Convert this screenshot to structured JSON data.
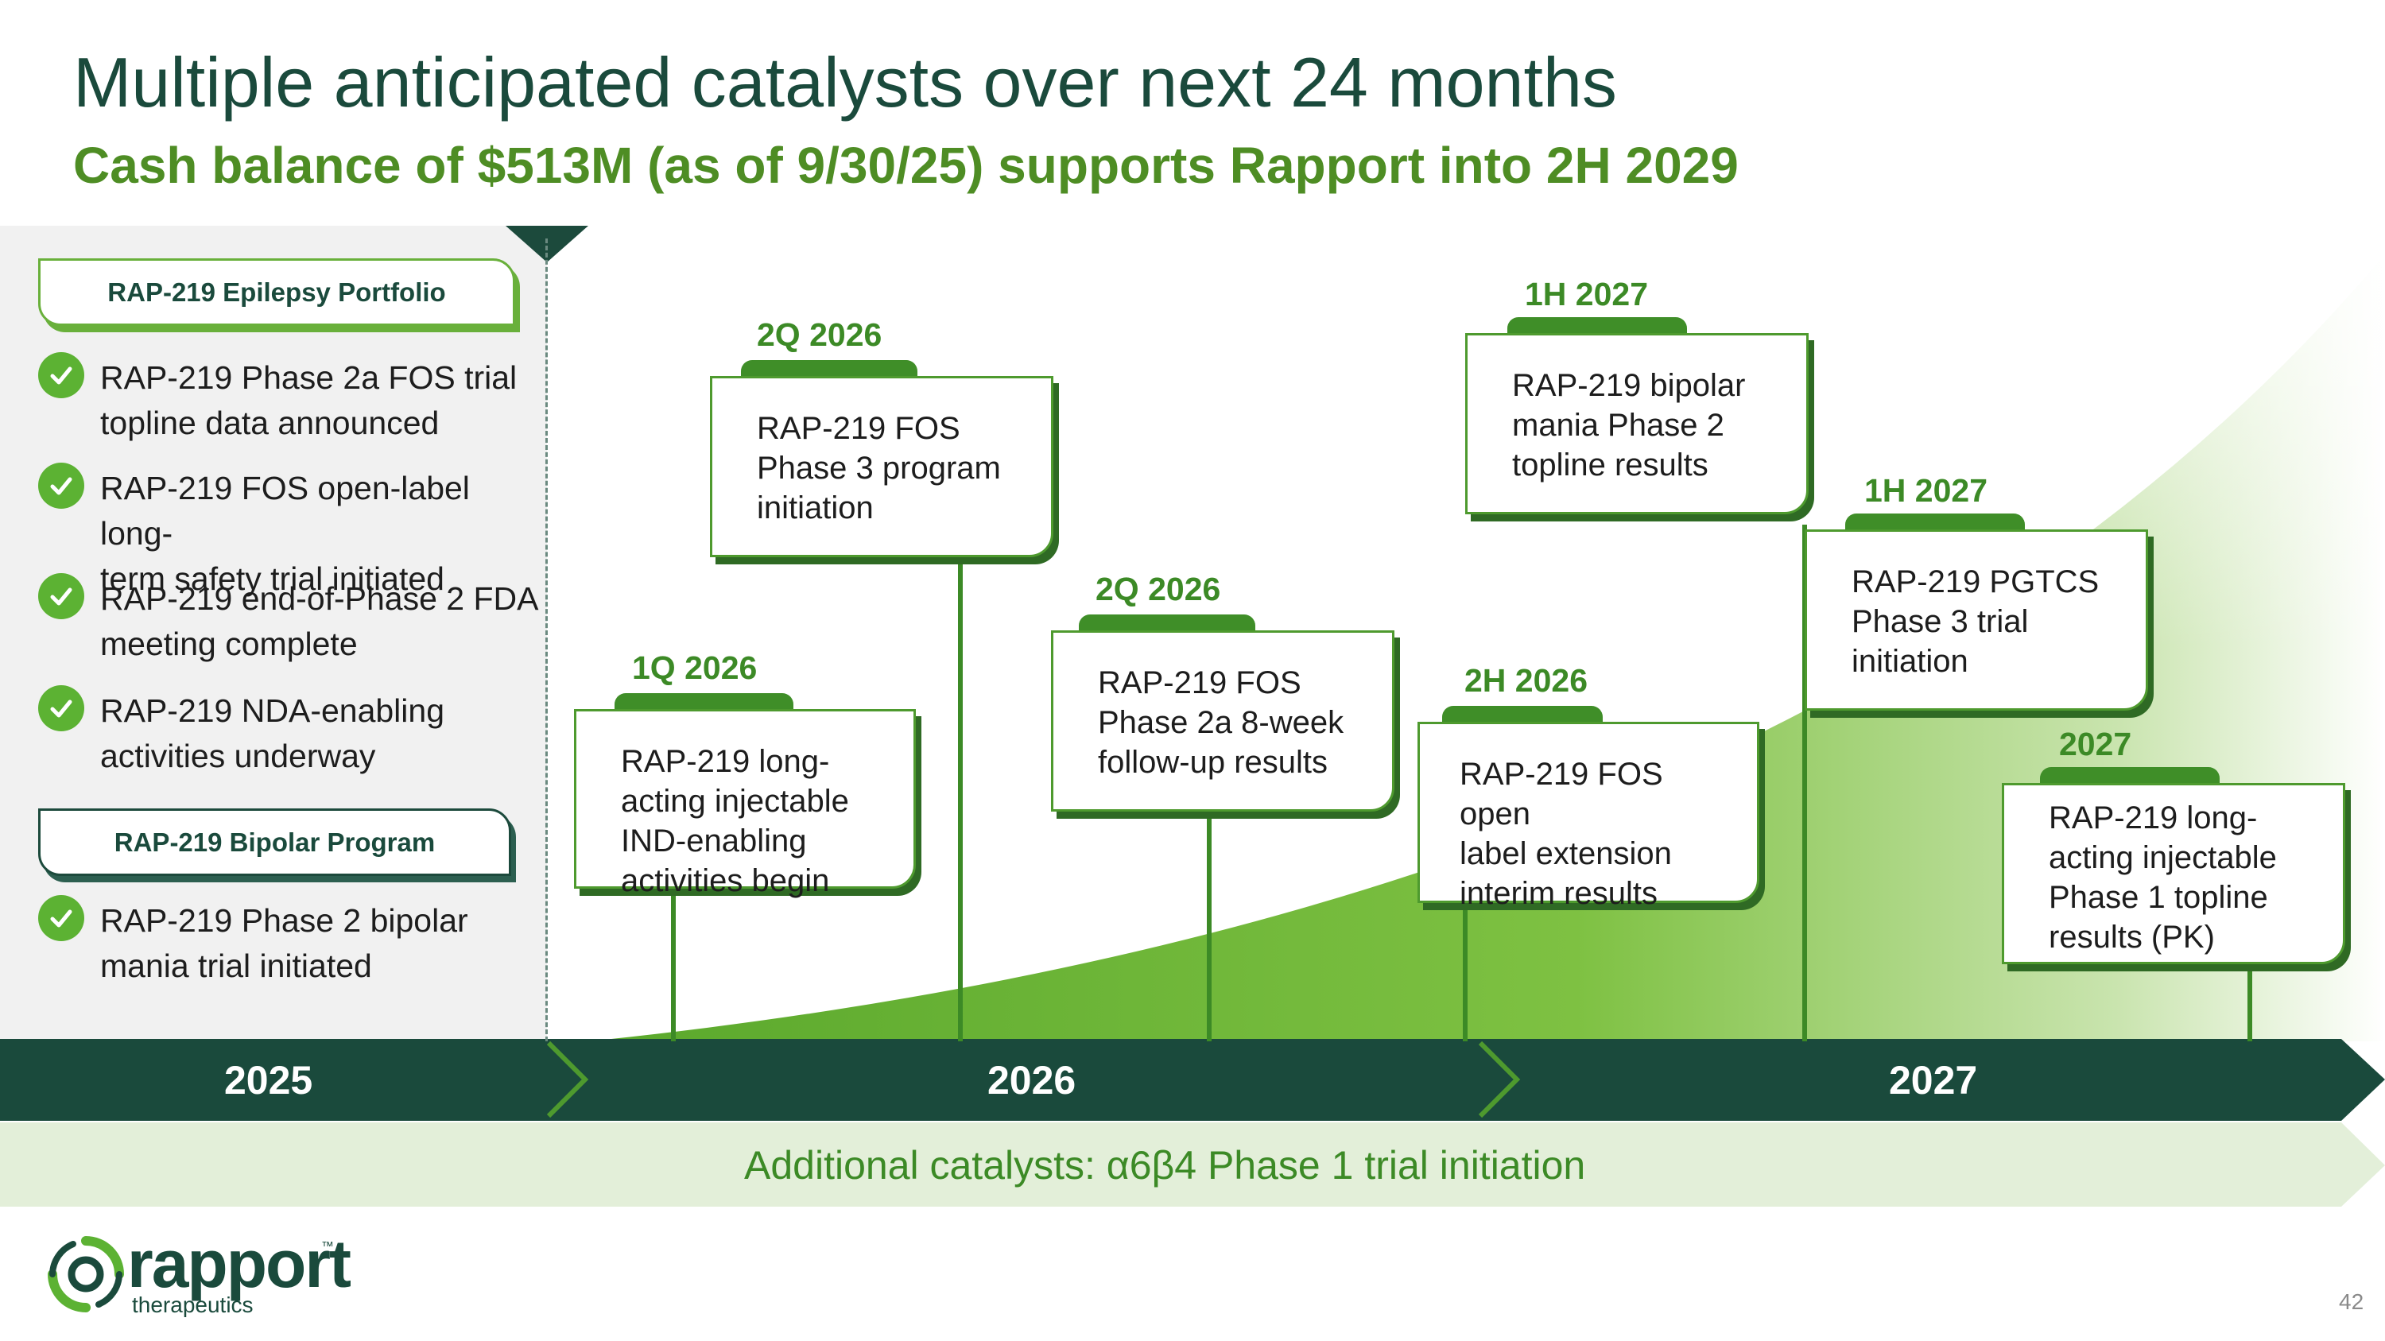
{
  "header": {
    "title": "Multiple anticipated catalysts over next 24 months",
    "subtitle": "Cash balance of $513M (as of 9/30/25) supports Rapport into 2H 2029"
  },
  "left_panel": {
    "epilepsy_tab": "RAP-219 Epilepsy Portfolio",
    "epilepsy_items": [
      [
        "RAP-219 Phase 2a FOS trial",
        "topline data announced"
      ],
      [
        "RAP-219 FOS open-label long-",
        "term safety trial initiated"
      ],
      [
        "RAP-219 end-of-Phase 2 FDA",
        "meeting complete"
      ],
      [
        "RAP-219 NDA-enabling",
        "activities underway"
      ]
    ],
    "bipolar_tab": "RAP-219 Bipolar Program",
    "bipolar_items": [
      [
        "RAP-219 Phase 2 bipolar",
        "mania trial initiated"
      ]
    ]
  },
  "milestones": [
    {
      "date": "1Q 2026",
      "lines": [
        "RAP-219 long-",
        "acting injectable",
        "IND-enabling",
        "activities begin"
      ]
    },
    {
      "date": "2Q 2026",
      "lines": [
        "RAP-219 FOS",
        "Phase 3 program",
        "initiation"
      ]
    },
    {
      "date": "2Q 2026",
      "lines": [
        "RAP-219 FOS",
        "Phase 2a 8-week",
        "follow-up results"
      ]
    },
    {
      "date": "2H 2026",
      "lines": [
        "RAP-219 FOS open",
        "label extension",
        "interim results"
      ]
    },
    {
      "date": "1H 2027",
      "lines": [
        "RAP-219 bipolar",
        "mania Phase 2",
        "topline results"
      ]
    },
    {
      "date": "1H 2027",
      "lines": [
        "RAP-219 PGTCS",
        "Phase 3 trial",
        "initiation"
      ]
    },
    {
      "date": "2027",
      "lines": [
        "RAP-219 long-",
        "acting injectable",
        "Phase 1 topline",
        "results (PK)"
      ]
    }
  ],
  "years": [
    "2025",
    "2026",
    "2027"
  ],
  "additional": "Additional catalysts: α6β4 Phase 1 trial initiation",
  "footer": {
    "logo_word": "rapport",
    "logo_tm": "™",
    "logo_sub": "therapeutics",
    "page_number": "42"
  },
  "colors": {
    "dark_green": "#1a4a3c",
    "accent_green": "#4e8d24",
    "light_green": "#5cb233",
    "panel_gray": "#f1f1f1"
  },
  "icons": [
    "check-icon",
    "rapport-logo-icon"
  ]
}
